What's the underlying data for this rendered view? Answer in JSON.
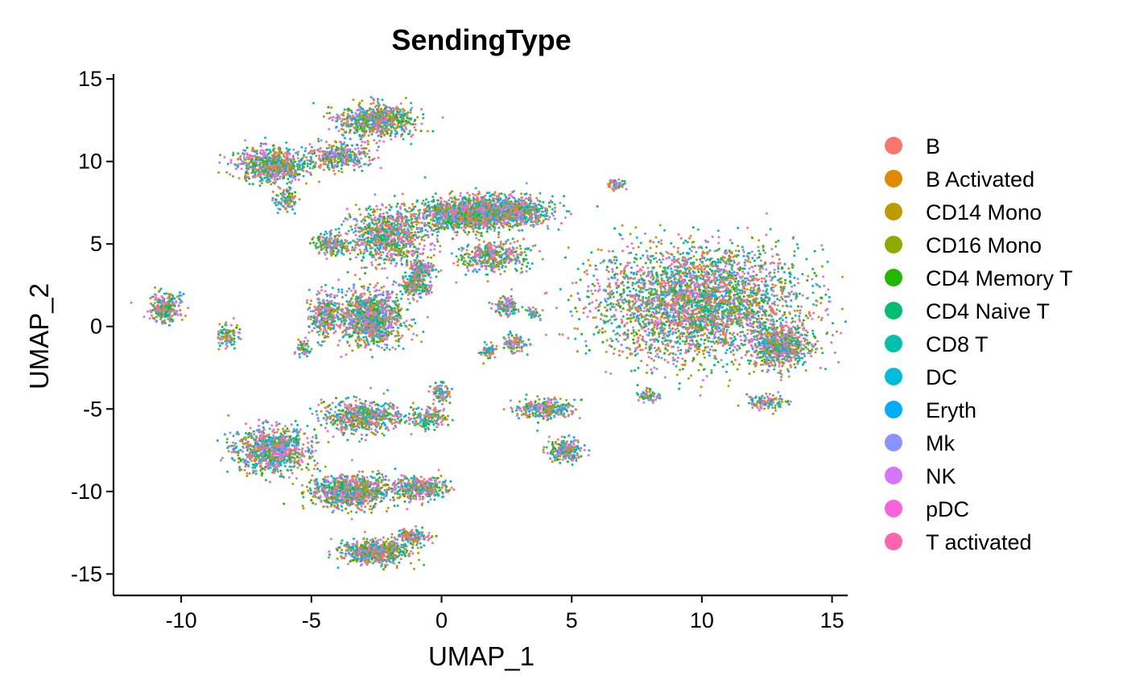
{
  "chart_data": {
    "type": "scatter",
    "title": "SendingType",
    "xlabel": "UMAP_1",
    "ylabel": "UMAP_2",
    "xlim": [
      -12.6,
      15.6
    ],
    "ylim": [
      -16.3,
      15.3
    ],
    "xticks": [
      -10,
      -5,
      0,
      5,
      10,
      15
    ],
    "yticks": [
      -15,
      -10,
      -5,
      0,
      5,
      10,
      15
    ],
    "xtick_labels": [
      "-10",
      "-5",
      "0",
      "5",
      "10",
      "15"
    ],
    "ytick_labels": [
      "-15",
      "-10",
      "-5",
      "0",
      "5",
      "10",
      "15"
    ],
    "grid": false,
    "legend_position": "right",
    "series": [
      {
        "name": "B",
        "color": "#F8766D"
      },
      {
        "name": "B Activated",
        "color": "#E18A00"
      },
      {
        "name": "CD14 Mono",
        "color": "#BE9C00"
      },
      {
        "name": "CD16 Mono",
        "color": "#8CAB00"
      },
      {
        "name": "CD4 Memory T",
        "color": "#24B700"
      },
      {
        "name": "CD4 Naive T",
        "color": "#00BE70"
      },
      {
        "name": "CD8 T",
        "color": "#00C1AB"
      },
      {
        "name": "DC",
        "color": "#00BBDA"
      },
      {
        "name": "Eryth",
        "color": "#00ACFC"
      },
      {
        "name": "Mk",
        "color": "#8B93FF"
      },
      {
        "name": "NK",
        "color": "#D575FE"
      },
      {
        "name": "pDC",
        "color": "#F962DD"
      },
      {
        "name": "T activated",
        "color": "#FF65AC"
      }
    ],
    "clusters": [
      {
        "x": 9.8,
        "y": 1.4,
        "sx": 3.5,
        "sy": 3.0,
        "n": 3500
      },
      {
        "x": 13.0,
        "y": -1.2,
        "sx": 1.0,
        "sy": 1.1,
        "n": 700
      },
      {
        "x": 12.5,
        "y": -4.6,
        "sx": 0.7,
        "sy": 0.4,
        "n": 120
      },
      {
        "x": 0.9,
        "y": 6.8,
        "sx": 1.6,
        "sy": 0.9,
        "n": 1100
      },
      {
        "x": 2.5,
        "y": 7.0,
        "sx": 1.6,
        "sy": 0.8,
        "n": 900
      },
      {
        "x": -2.0,
        "y": 5.5,
        "sx": 1.3,
        "sy": 1.5,
        "n": 900
      },
      {
        "x": 2.0,
        "y": 4.2,
        "sx": 1.2,
        "sy": 0.8,
        "n": 400
      },
      {
        "x": -0.8,
        "y": 3.5,
        "sx": 0.5,
        "sy": 0.5,
        "n": 150
      },
      {
        "x": -2.7,
        "y": 0.5,
        "sx": 1.1,
        "sy": 1.5,
        "n": 1100
      },
      {
        "x": -4.5,
        "y": 0.7,
        "sx": 0.5,
        "sy": 1.2,
        "n": 300
      },
      {
        "x": -5.3,
        "y": -1.3,
        "sx": 0.3,
        "sy": 0.4,
        "n": 60
      },
      {
        "x": -1.0,
        "y": 2.5,
        "sx": 0.6,
        "sy": 0.6,
        "n": 200
      },
      {
        "x": -2.5,
        "y": 12.5,
        "sx": 1.3,
        "sy": 0.9,
        "n": 700
      },
      {
        "x": -6.5,
        "y": 9.8,
        "sx": 1.2,
        "sy": 0.9,
        "n": 700
      },
      {
        "x": -4.0,
        "y": 10.3,
        "sx": 1.1,
        "sy": 0.7,
        "n": 350
      },
      {
        "x": -6.0,
        "y": 7.7,
        "sx": 0.4,
        "sy": 0.6,
        "n": 100
      },
      {
        "x": -4.2,
        "y": 5.0,
        "sx": 0.6,
        "sy": 0.6,
        "n": 180
      },
      {
        "x": -10.6,
        "y": 1.1,
        "sx": 0.5,
        "sy": 0.8,
        "n": 280
      },
      {
        "x": -8.2,
        "y": -0.6,
        "sx": 0.4,
        "sy": 0.7,
        "n": 100
      },
      {
        "x": -3.0,
        "y": -5.5,
        "sx": 1.4,
        "sy": 0.9,
        "n": 600
      },
      {
        "x": -6.5,
        "y": -7.5,
        "sx": 1.3,
        "sy": 1.2,
        "n": 900
      },
      {
        "x": -3.5,
        "y": -10.0,
        "sx": 1.4,
        "sy": 0.9,
        "n": 900
      },
      {
        "x": -0.8,
        "y": -9.8,
        "sx": 0.9,
        "sy": 0.6,
        "n": 350
      },
      {
        "x": -2.6,
        "y": -13.7,
        "sx": 1.1,
        "sy": 0.6,
        "n": 700
      },
      {
        "x": -1.1,
        "y": -12.8,
        "sx": 0.6,
        "sy": 0.5,
        "n": 150
      },
      {
        "x": -0.5,
        "y": -5.5,
        "sx": 0.6,
        "sy": 0.6,
        "n": 150
      },
      {
        "x": 0.0,
        "y": -4.0,
        "sx": 0.3,
        "sy": 0.6,
        "n": 90
      },
      {
        "x": 4.0,
        "y": -5.0,
        "sx": 1.0,
        "sy": 0.5,
        "n": 300
      },
      {
        "x": 4.8,
        "y": -7.5,
        "sx": 0.6,
        "sy": 0.6,
        "n": 250
      },
      {
        "x": 2.5,
        "y": 1.2,
        "sx": 0.4,
        "sy": 0.5,
        "n": 130
      },
      {
        "x": 2.8,
        "y": -1.0,
        "sx": 0.4,
        "sy": 0.5,
        "n": 100
      },
      {
        "x": 1.8,
        "y": -1.5,
        "sx": 0.3,
        "sy": 0.4,
        "n": 60
      },
      {
        "x": 6.7,
        "y": 8.6,
        "sx": 0.3,
        "sy": 0.3,
        "n": 70
      },
      {
        "x": 8.0,
        "y": -4.2,
        "sx": 0.4,
        "sy": 0.4,
        "n": 60
      },
      {
        "x": 3.5,
        "y": 0.8,
        "sx": 0.3,
        "sy": 0.3,
        "n": 40
      }
    ]
  }
}
